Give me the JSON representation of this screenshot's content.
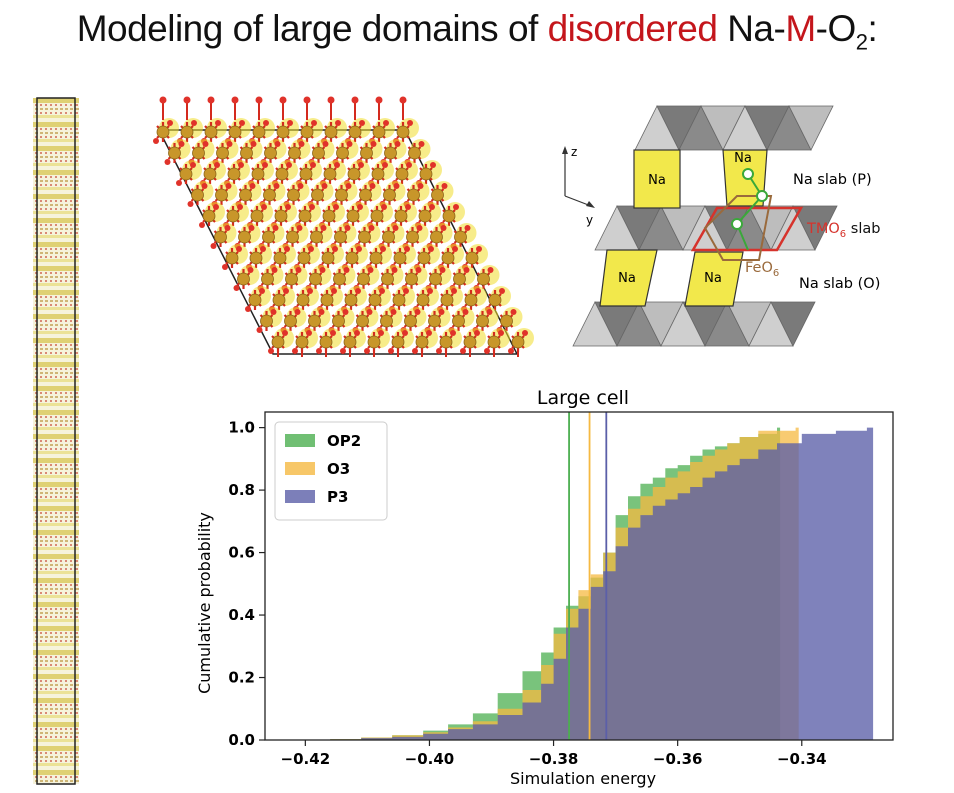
{
  "title": {
    "part1": "Modeling of large domains of ",
    "highlight": "disordered",
    "part2": " Na-",
    "metal": "M",
    "part3": "-O",
    "subscript": "2",
    "part4": ":"
  },
  "schematic": {
    "axis_z": "z",
    "axis_y": "y",
    "na_box": "Na",
    "label_na_slab_p": "Na slab (P)",
    "label_tmo6_main": "TMO",
    "label_tmo6_sub": "6",
    "label_tmo6_rest": " slab",
    "label_feo6_main": "FeO",
    "label_feo6_sub": "6",
    "label_na_slab_o": "Na slab (O)",
    "colors": {
      "na": "#f2e84b",
      "octa_light": "#cfcfcf",
      "octa_dark": "#8a8a8a",
      "tmo": "#d6332c",
      "feo": "#9a6a3c",
      "site": "#3aa83a"
    }
  },
  "chart_data": {
    "type": "histogram",
    "title": "Large cell",
    "xlabel": "Simulation energy",
    "ylabel": "Cumulative probability",
    "xlim": [
      -0.4265,
      -0.3253
    ],
    "ylim": [
      0.0,
      1.05
    ],
    "xticks": [
      "−0.42",
      "−0.40",
      "−0.38",
      "−0.36",
      "−0.34"
    ],
    "xtick_values": [
      -0.42,
      -0.4,
      -0.38,
      -0.36,
      -0.34
    ],
    "yticks": [
      "0.0",
      "0.2",
      "0.4",
      "0.6",
      "0.8",
      "1.0"
    ],
    "ytick_values": [
      0.0,
      0.2,
      0.4,
      0.6,
      0.8,
      1.0
    ],
    "legend_position": "top-left",
    "series": [
      {
        "name": "OP2",
        "color": "#4caf50",
        "mean_line": -0.3775,
        "points": [
          [
            -0.421,
            0.0
          ],
          [
            -0.416,
            0.003
          ],
          [
            -0.411,
            0.008
          ],
          [
            -0.406,
            0.015
          ],
          [
            -0.401,
            0.03
          ],
          [
            -0.397,
            0.05
          ],
          [
            -0.393,
            0.085
          ],
          [
            -0.389,
            0.15
          ],
          [
            -0.385,
            0.22
          ],
          [
            -0.382,
            0.28
          ],
          [
            -0.38,
            0.36
          ],
          [
            -0.378,
            0.43
          ],
          [
            -0.376,
            0.46
          ],
          [
            -0.374,
            0.52
          ],
          [
            -0.372,
            0.6
          ],
          [
            -0.37,
            0.72
          ],
          [
            -0.368,
            0.78
          ],
          [
            -0.366,
            0.82
          ],
          [
            -0.364,
            0.84
          ],
          [
            -0.362,
            0.87
          ],
          [
            -0.36,
            0.88
          ],
          [
            -0.358,
            0.91
          ],
          [
            -0.356,
            0.93
          ],
          [
            -0.354,
            0.94
          ],
          [
            -0.352,
            0.95
          ],
          [
            -0.35,
            0.97
          ],
          [
            -0.347,
            0.98
          ],
          [
            -0.344,
            1.0
          ],
          [
            -0.3435,
            1.0
          ]
        ]
      },
      {
        "name": "O3",
        "color": "#f5b942",
        "mean_line": -0.3742,
        "points": [
          [
            -0.421,
            0.0
          ],
          [
            -0.416,
            0.003
          ],
          [
            -0.411,
            0.008
          ],
          [
            -0.406,
            0.015
          ],
          [
            -0.401,
            0.025
          ],
          [
            -0.397,
            0.04
          ],
          [
            -0.393,
            0.06
          ],
          [
            -0.389,
            0.1
          ],
          [
            -0.385,
            0.16
          ],
          [
            -0.382,
            0.24
          ],
          [
            -0.38,
            0.34
          ],
          [
            -0.378,
            0.42
          ],
          [
            -0.376,
            0.48
          ],
          [
            -0.374,
            0.53
          ],
          [
            -0.372,
            0.6
          ],
          [
            -0.37,
            0.68
          ],
          [
            -0.368,
            0.74
          ],
          [
            -0.366,
            0.78
          ],
          [
            -0.364,
            0.81
          ],
          [
            -0.362,
            0.84
          ],
          [
            -0.36,
            0.86
          ],
          [
            -0.358,
            0.89
          ],
          [
            -0.356,
            0.91
          ],
          [
            -0.354,
            0.93
          ],
          [
            -0.352,
            0.95
          ],
          [
            -0.35,
            0.97
          ],
          [
            -0.347,
            0.99
          ],
          [
            -0.341,
            1.0
          ],
          [
            -0.3405,
            1.0
          ]
        ]
      },
      {
        "name": "P3",
        "color": "#5b5fa8",
        "mean_line": -0.3715,
        "points": [
          [
            -0.421,
            0.0
          ],
          [
            -0.416,
            0.002
          ],
          [
            -0.411,
            0.006
          ],
          [
            -0.406,
            0.01
          ],
          [
            -0.401,
            0.02
          ],
          [
            -0.397,
            0.035
          ],
          [
            -0.393,
            0.05
          ],
          [
            -0.389,
            0.08
          ],
          [
            -0.385,
            0.12
          ],
          [
            -0.382,
            0.18
          ],
          [
            -0.38,
            0.26
          ],
          [
            -0.378,
            0.36
          ],
          [
            -0.376,
            0.42
          ],
          [
            -0.374,
            0.49
          ],
          [
            -0.372,
            0.54
          ],
          [
            -0.37,
            0.62
          ],
          [
            -0.368,
            0.68
          ],
          [
            -0.366,
            0.72
          ],
          [
            -0.364,
            0.75
          ],
          [
            -0.362,
            0.77
          ],
          [
            -0.36,
            0.79
          ],
          [
            -0.358,
            0.81
          ],
          [
            -0.356,
            0.84
          ],
          [
            -0.354,
            0.86
          ],
          [
            -0.352,
            0.88
          ],
          [
            -0.35,
            0.9
          ],
          [
            -0.347,
            0.93
          ],
          [
            -0.344,
            0.95
          ],
          [
            -0.34,
            0.98
          ],
          [
            -0.3345,
            0.99
          ],
          [
            -0.3295,
            1.0
          ],
          [
            -0.3285,
            1.0
          ]
        ]
      }
    ]
  }
}
